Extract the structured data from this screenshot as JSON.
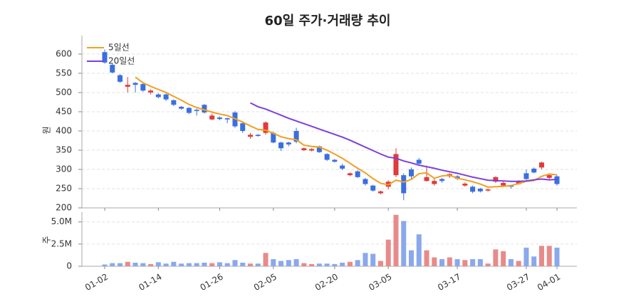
{
  "chart_data": {
    "type": "candlestick",
    "title": "60일 주가·거래량 추이",
    "ylabel": "원",
    "categories": [
      "01-02",
      null,
      null,
      null,
      null,
      null,
      null,
      "01-14",
      null,
      null,
      null,
      null,
      null,
      null,
      null,
      "01-26",
      null,
      null,
      null,
      null,
      null,
      null,
      "02-05",
      null,
      null,
      null,
      null,
      null,
      null,
      null,
      "02-20",
      null,
      null,
      null,
      null,
      null,
      null,
      "03-05",
      null,
      null,
      null,
      null,
      null,
      null,
      null,
      null,
      "03-17",
      null,
      null,
      null,
      null,
      null,
      null,
      null,
      null,
      "03-27",
      null,
      null,
      null,
      "04-01"
    ],
    "open": [
      605,
      572,
      545,
      515,
      525,
      522,
      500,
      495,
      495,
      480,
      463,
      460,
      455,
      468,
      430,
      435,
      433,
      448,
      420,
      385,
      390,
      395,
      395,
      370,
      370,
      400,
      350,
      349,
      360,
      340,
      325,
      310,
      285,
      295,
      275,
      258,
      238,
      255,
      285,
      285,
      300,
      325,
      270,
      262,
      275,
      282,
      282,
      258,
      255,
      250,
      245,
      268,
      258,
      258,
      262,
      290,
      302,
      305,
      278,
      282
    ],
    "high": [
      612,
      575,
      548,
      540,
      527,
      525,
      508,
      498,
      498,
      482,
      465,
      462,
      458,
      470,
      445,
      438,
      435,
      452,
      425,
      395,
      392,
      425,
      398,
      372,
      372,
      408,
      357,
      355,
      362,
      342,
      327,
      315,
      292,
      298,
      278,
      260,
      245,
      272,
      355,
      290,
      305,
      330,
      310,
      275,
      278,
      290,
      285,
      266,
      258,
      252,
      250,
      282,
      268,
      260,
      272,
      300,
      305,
      320,
      290,
      285
    ],
    "low": [
      575,
      550,
      525,
      500,
      500,
      502,
      495,
      485,
      478,
      465,
      455,
      444,
      440,
      445,
      428,
      428,
      420,
      408,
      395,
      380,
      385,
      390,
      368,
      348,
      360,
      368,
      348,
      347,
      343,
      322,
      318,
      298,
      282,
      278,
      258,
      242,
      235,
      248,
      280,
      220,
      275,
      312,
      268,
      258,
      265,
      278,
      272,
      255,
      238,
      240,
      242,
      265,
      255,
      250,
      260,
      272,
      290,
      300,
      275,
      258
    ],
    "close": [
      578,
      552,
      528,
      520,
      520,
      505,
      505,
      488,
      482,
      468,
      458,
      447,
      452,
      448,
      440,
      431,
      430,
      412,
      400,
      390,
      387,
      422,
      370,
      355,
      365,
      372,
      355,
      353,
      345,
      325,
      320,
      302,
      290,
      280,
      262,
      245,
      243,
      268,
      340,
      238,
      282,
      315,
      280,
      270,
      270,
      288,
      276,
      263,
      242,
      243,
      248,
      280,
      265,
      255,
      268,
      275,
      292,
      318,
      285,
      262
    ],
    "up_color": "#e03a3a",
    "down_color": "#3a6fe0",
    "series": [
      {
        "name": "5일선",
        "color": "#f0a020",
        "values": [
          null,
          null,
          null,
          null,
          540,
          525,
          516,
          508,
          500,
          490,
          480,
          469,
          461,
          455,
          449,
          444,
          440,
          432,
          423,
          413,
          404,
          402,
          394,
          385,
          380,
          377,
          363,
          360,
          358,
          350,
          340,
          329,
          316,
          303,
          291,
          276,
          264,
          260,
          272,
          267,
          274,
          289,
          291,
          277,
          283,
          285,
          277,
          273,
          268,
          262,
          254,
          255,
          256,
          258,
          263,
          269,
          271,
          282,
          288,
          286
        ]
      },
      {
        "name": "20일선",
        "color": "#7b3fe0",
        "values": [
          null,
          null,
          null,
          null,
          null,
          null,
          null,
          null,
          null,
          null,
          null,
          null,
          null,
          null,
          null,
          null,
          null,
          null,
          null,
          473,
          463,
          457,
          449,
          441,
          433,
          426,
          419,
          412,
          405,
          398,
          391,
          384,
          376,
          367,
          358,
          349,
          340,
          332,
          329,
          322,
          317,
          311,
          307,
          303,
          298,
          294,
          290,
          285,
          280,
          276,
          272,
          271,
          270,
          269,
          269,
          270,
          273,
          275,
          273,
          274
        ]
      }
    ],
    "ylim": [
      200,
      648
    ],
    "yticks": [
      200,
      250,
      300,
      350,
      400,
      450,
      500,
      550,
      600
    ],
    "grid": true,
    "legend": "upper left",
    "volume": {
      "ylabel": "주",
      "up_color": "#e88a8a",
      "down_color": "#8aa8ec",
      "values": [
        200000,
        350000,
        350000,
        500000,
        400000,
        350000,
        250000,
        450000,
        300000,
        500000,
        300000,
        350000,
        350000,
        400000,
        350000,
        450000,
        350000,
        700000,
        400000,
        300000,
        300000,
        1500000,
        800000,
        600000,
        700000,
        800000,
        350000,
        250000,
        300000,
        300000,
        250000,
        400000,
        500000,
        700000,
        1500000,
        1400000,
        600000,
        3000000,
        5800000,
        5100000,
        1800000,
        3600000,
        1800000,
        1000000,
        800000,
        1000000,
        800000,
        700000,
        800000,
        800000,
        300000,
        1900000,
        1700000,
        800000,
        600000,
        2100000,
        1100000,
        2300000,
        2300000,
        2100000
      ],
      "ylim": [
        0,
        6100000
      ],
      "yticks": [
        0,
        {
          "value": 2500000,
          "label": "2.5M"
        },
        {
          "value": 5000000,
          "label": "5.0M"
        }
      ]
    }
  }
}
